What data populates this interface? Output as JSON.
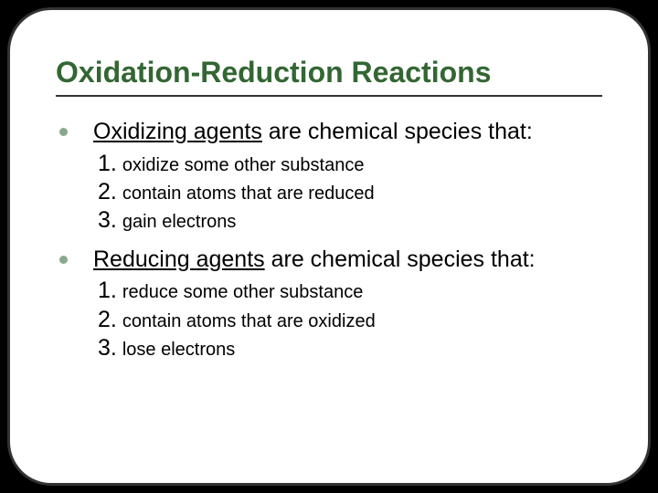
{
  "slide": {
    "title": "Oxidation-Reduction Reactions",
    "title_color": "#336633",
    "title_fontsize": 32,
    "border_color": "#333333",
    "border_radius": 48,
    "background": "#ffffff",
    "outer_background": "#000000",
    "bullet_color": "#8aa88a",
    "body_fontsize": 25,
    "subitem_fontsize": 20,
    "sections": [
      {
        "lead_underlined": "Oxidizing agents",
        "lead_rest": " are chemical species that:",
        "items": [
          {
            "n": "1.",
            "text": "oxidize some other substance"
          },
          {
            "n": "2.",
            "text": "contain atoms that are reduced"
          },
          {
            "n": "3.",
            "text": "gain electrons"
          }
        ]
      },
      {
        "lead_underlined": "Reducing agents",
        "lead_rest": " are chemical species that:",
        "items": [
          {
            "n": "1.",
            "text": "reduce some other substance"
          },
          {
            "n": "2.",
            "text": "contain atoms that are oxidized"
          },
          {
            "n": "3.",
            "text": "lose electrons"
          }
        ]
      }
    ]
  }
}
